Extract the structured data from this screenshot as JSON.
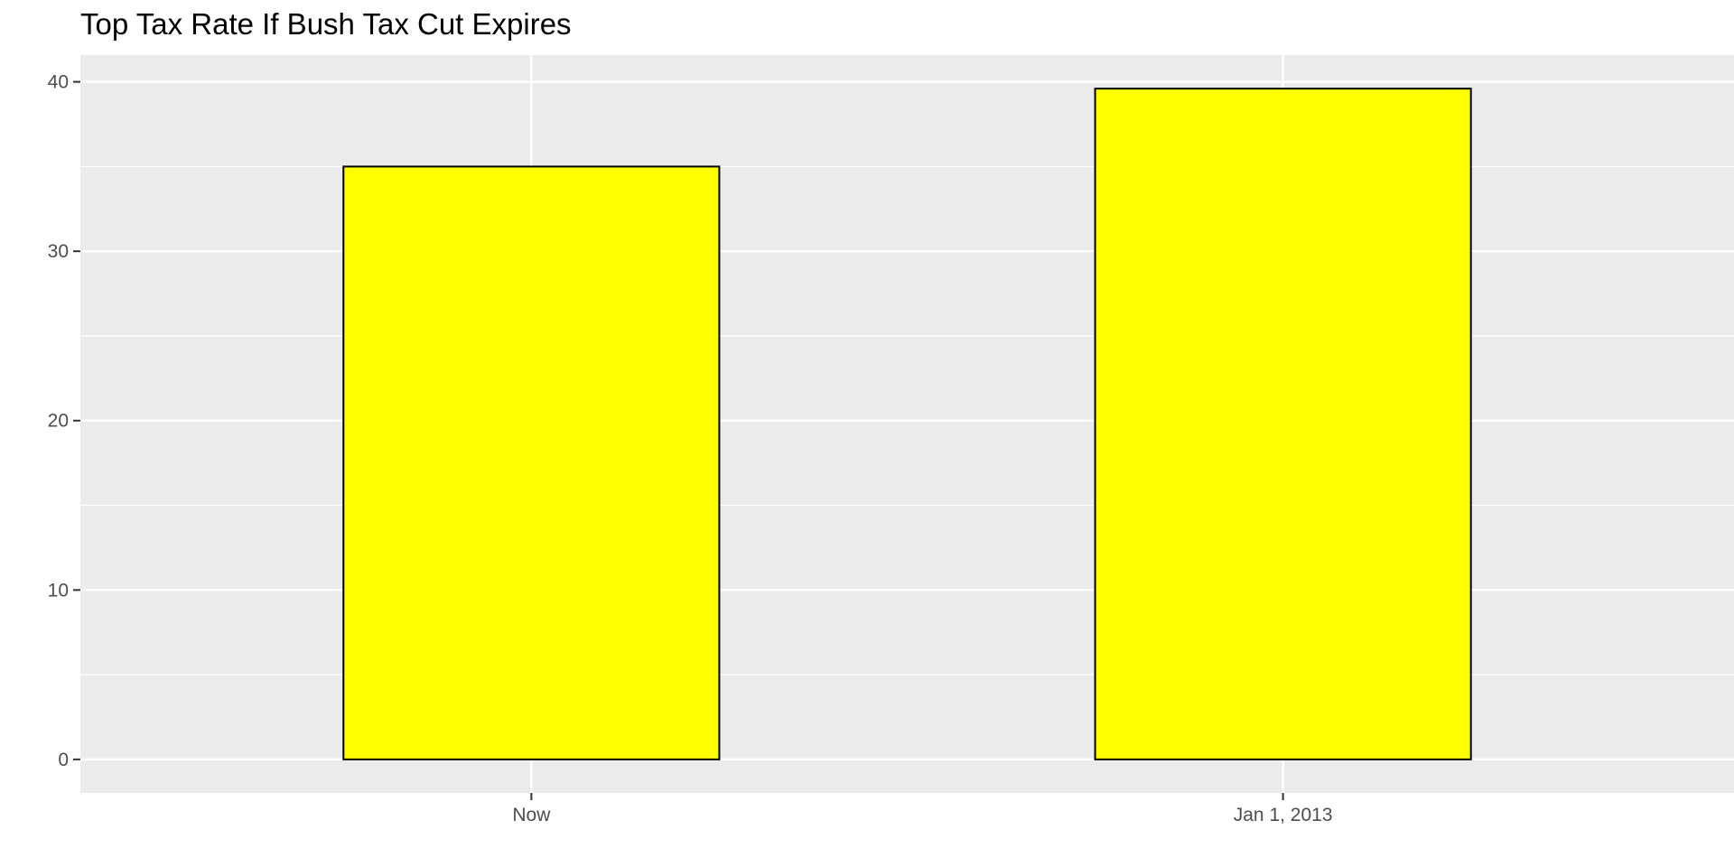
{
  "chart_data": {
    "type": "bar",
    "title": "Top Tax Rate If Bush Tax Cut Expires",
    "xlabel": "",
    "ylabel": "",
    "categories": [
      "Now",
      "Jan 1, 2013"
    ],
    "values": [
      35,
      39.6
    ],
    "ylim": [
      -1.98,
      41.58
    ],
    "yticks": [
      "0",
      "10",
      "20",
      "30",
      "40"
    ],
    "grid": true,
    "legend": "none",
    "colors": {
      "bar_fill": "#ffff00",
      "bar_stroke": "#000000",
      "panel_background": "#ebebeb",
      "gridline": "#ffffff",
      "tick_label": "#4d4d4d"
    }
  }
}
